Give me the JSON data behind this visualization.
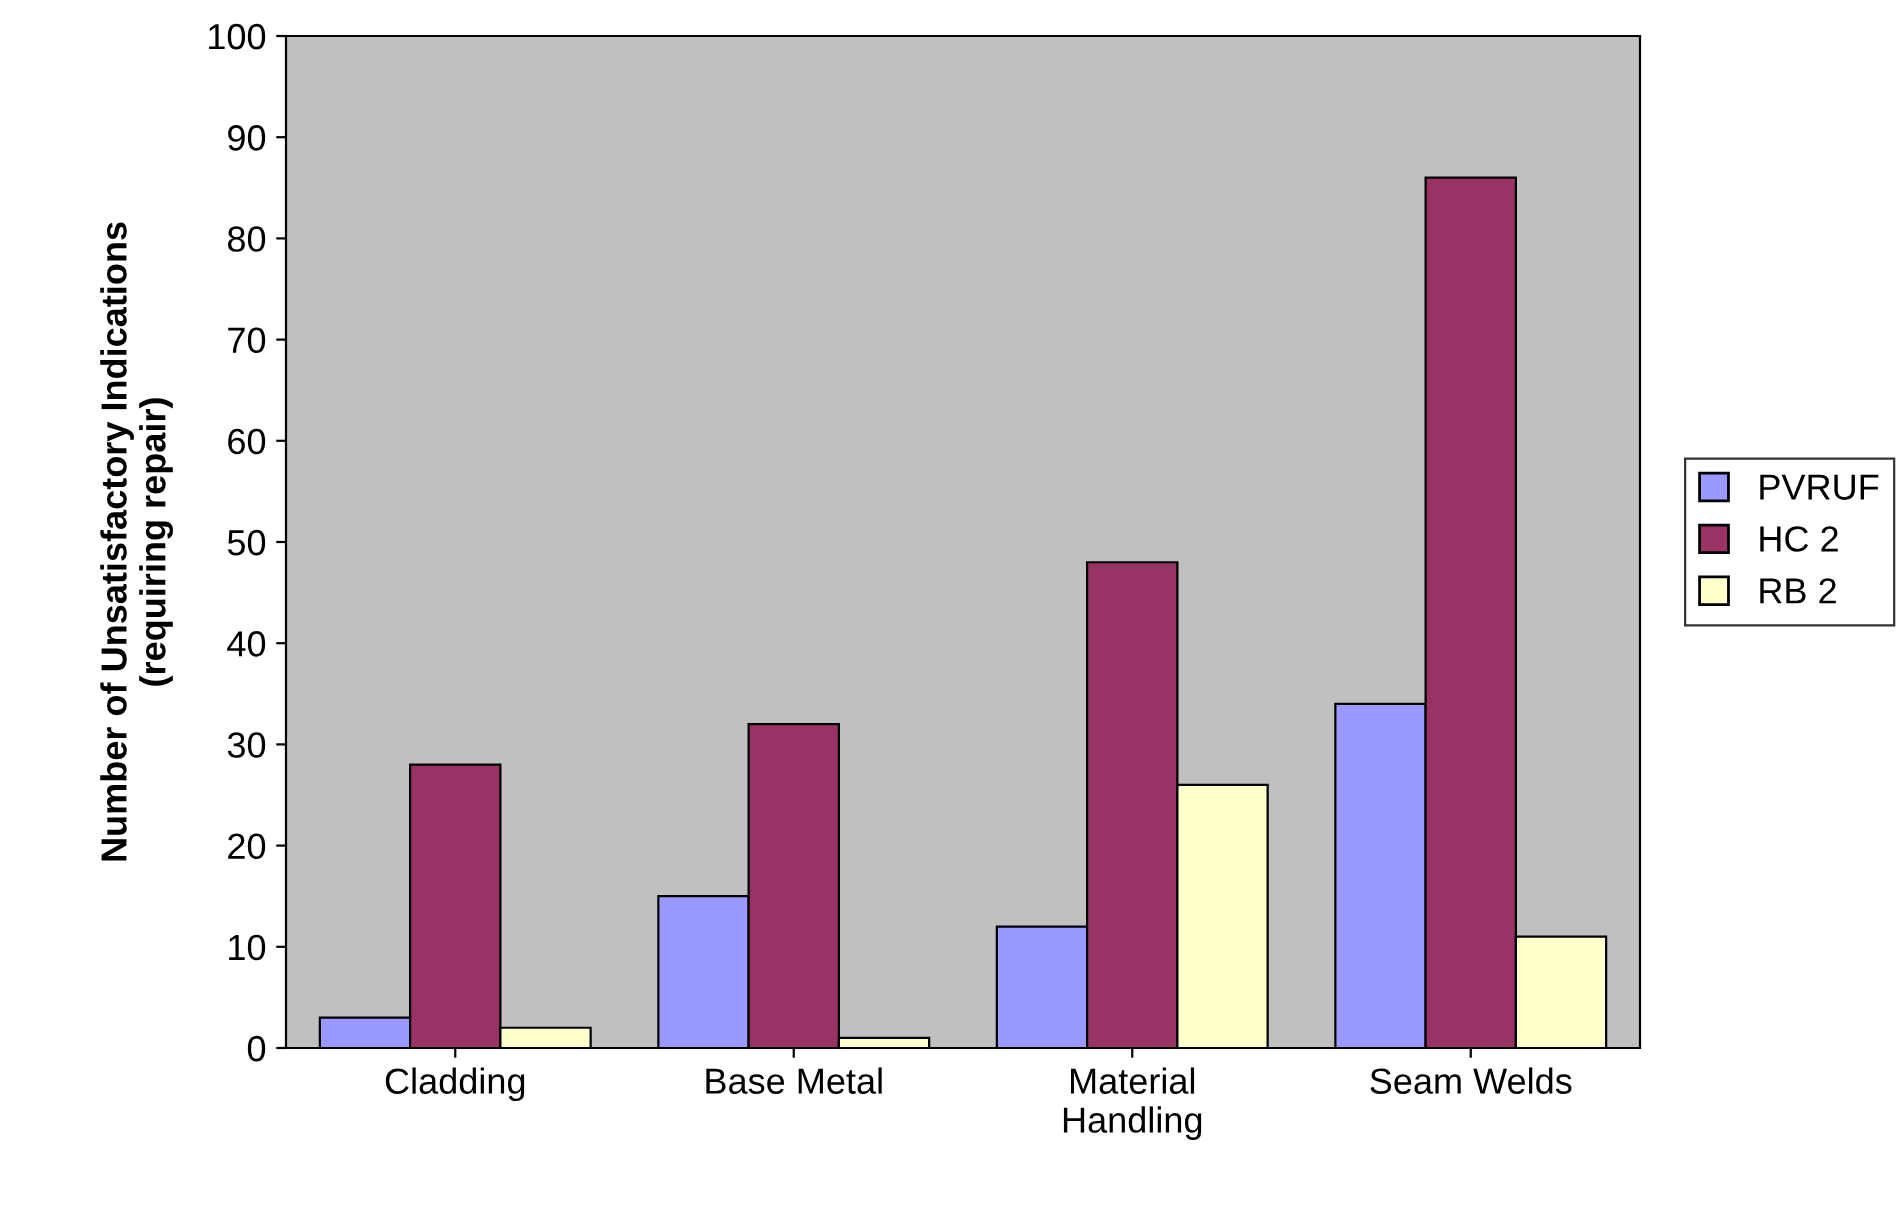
{
  "chart_data": {
    "type": "bar",
    "ylabel": "Number of Unsatisfactory Indications\n(requiring repair)",
    "categories": [
      "Cladding",
      "Base Metal",
      "Material\nHandling",
      "Seam Welds"
    ],
    "series": [
      {
        "name": "PVRUF",
        "color": "#9999ff",
        "values": [
          3,
          15,
          12,
          34
        ]
      },
      {
        "name": "HC 2",
        "color": "#993366",
        "values": [
          28,
          32,
          48,
          86
        ]
      },
      {
        "name": "RB 2",
        "color": "#ffffcc",
        "values": [
          2,
          1,
          26,
          11
        ]
      }
    ],
    "ylim": [
      0,
      100
    ],
    "yticks": [
      0,
      10,
      20,
      30,
      40,
      50,
      60,
      70,
      80,
      90,
      100
    ],
    "grid": false,
    "legend": "right"
  }
}
